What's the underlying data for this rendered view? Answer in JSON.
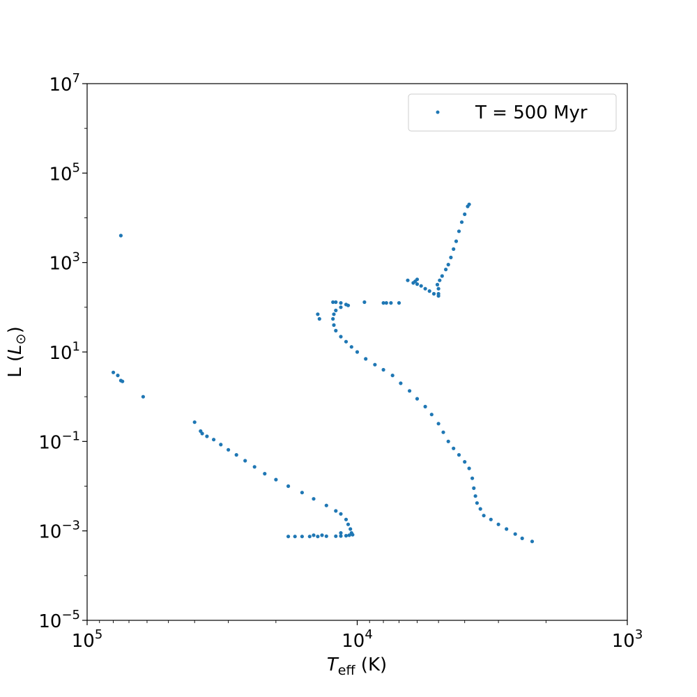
{
  "chart_data": {
    "type": "scatter",
    "title": "",
    "xlabel_main": "T",
    "xlabel_sub": "eff",
    "xlabel_unit": " (K)",
    "ylabel_main": "L (",
    "ylabel_sym": "L",
    "ylabel_sub": "⊙",
    "ylabel_end": ")",
    "x_scale": "log",
    "y_scale": "log",
    "x_inverted": true,
    "xlim": [
      100000,
      1000
    ],
    "ylim": [
      1e-05,
      10000000
    ],
    "grid": false,
    "legend_position": "top-right",
    "x_ticks": [
      {
        "value": 100000,
        "base": "10",
        "exp": "5"
      },
      {
        "value": 10000,
        "base": "10",
        "exp": "4"
      },
      {
        "value": 1000,
        "base": "10",
        "exp": "3"
      }
    ],
    "y_ticks": [
      {
        "value": 1e-05,
        "base": "10",
        "exp": "−5"
      },
      {
        "value": 0.001,
        "base": "10",
        "exp": "−3"
      },
      {
        "value": 0.1,
        "base": "10",
        "exp": "−1"
      },
      {
        "value": 10,
        "base": "10",
        "exp": "1"
      },
      {
        "value": 1000,
        "base": "10",
        "exp": "3"
      },
      {
        "value": 100000,
        "base": "10",
        "exp": "5"
      },
      {
        "value": 10000000,
        "base": "10",
        "exp": "7"
      }
    ],
    "series": [
      {
        "name": "T = 500 Myr",
        "color": "#1f77b4",
        "points": [
          [
            75000,
            4000
          ],
          [
            80000,
            3.5
          ],
          [
            77000,
            3.0
          ],
          [
            75000,
            2.3
          ],
          [
            74000,
            2.2
          ],
          [
            62000,
            1.0
          ],
          [
            40000,
            0.27
          ],
          [
            38000,
            0.17
          ],
          [
            37500,
            0.15
          ],
          [
            36000,
            0.13
          ],
          [
            34000,
            0.11
          ],
          [
            32000,
            0.085
          ],
          [
            30000,
            0.065
          ],
          [
            28000,
            0.05
          ],
          [
            26000,
            0.037
          ],
          [
            24000,
            0.027
          ],
          [
            22000,
            0.019
          ],
          [
            20000,
            0.014
          ],
          [
            18000,
            0.01
          ],
          [
            16000,
            0.0072
          ],
          [
            14500,
            0.0052
          ],
          [
            13000,
            0.0037
          ],
          [
            12000,
            0.0028
          ],
          [
            11500,
            0.0024
          ],
          [
            11000,
            0.0018
          ],
          [
            10800,
            0.0014
          ],
          [
            10600,
            0.0011
          ],
          [
            10500,
            0.0009
          ],
          [
            10400,
            0.00082
          ],
          [
            18000,
            0.00075
          ],
          [
            17000,
            0.00075
          ],
          [
            16000,
            0.00075
          ],
          [
            15000,
            0.00075
          ],
          [
            14000,
            0.00075
          ],
          [
            13000,
            0.00076
          ],
          [
            12000,
            0.00076
          ],
          [
            11500,
            0.00077
          ],
          [
            11000,
            0.00078
          ],
          [
            10700,
            0.0008
          ],
          [
            14500,
            0.0008
          ],
          [
            13500,
            0.0008
          ],
          [
            11500,
            0.0009
          ],
          [
            14000,
            70
          ],
          [
            13800,
            55
          ],
          [
            12300,
            130
          ],
          [
            12000,
            130
          ],
          [
            11500,
            125
          ],
          [
            11000,
            115
          ],
          [
            10800,
            110
          ],
          [
            11500,
            100
          ],
          [
            12000,
            85
          ],
          [
            12200,
            70
          ],
          [
            12300,
            55
          ],
          [
            12200,
            40
          ],
          [
            12000,
            30
          ],
          [
            11500,
            22
          ],
          [
            11000,
            17
          ],
          [
            10500,
            13
          ],
          [
            10000,
            10
          ],
          [
            9300,
            7
          ],
          [
            8600,
            5.2
          ],
          [
            8000,
            4.0
          ],
          [
            7400,
            3.0
          ],
          [
            6900,
            2.0
          ],
          [
            6400,
            1.35
          ],
          [
            6000,
            0.9
          ],
          [
            5600,
            0.6
          ],
          [
            5300,
            0.4
          ],
          [
            5000,
            0.25
          ],
          [
            4800,
            0.16
          ],
          [
            4600,
            0.1
          ],
          [
            4400,
            0.07
          ],
          [
            4200,
            0.05
          ],
          [
            4000,
            0.035
          ],
          [
            3850,
            0.025
          ],
          [
            3750,
            0.015
          ],
          [
            3700,
            0.009
          ],
          [
            3650,
            0.006
          ],
          [
            3600,
            0.0042
          ],
          [
            3500,
            0.0031
          ],
          [
            3400,
            0.0022
          ],
          [
            3200,
            0.0018
          ],
          [
            3000,
            0.0014
          ],
          [
            2800,
            0.0011
          ],
          [
            2600,
            0.00085
          ],
          [
            2450,
            0.00068
          ],
          [
            2250,
            0.00058
          ],
          [
            9400,
            130
          ],
          [
            8000,
            125
          ],
          [
            7800,
            125
          ],
          [
            7500,
            125
          ],
          [
            7000,
            125
          ],
          [
            6500,
            400
          ],
          [
            6200,
            350
          ],
          [
            6000,
            330
          ],
          [
            5800,
            300
          ],
          [
            5600,
            260
          ],
          [
            5400,
            230
          ],
          [
            5200,
            200
          ],
          [
            5000,
            180
          ],
          [
            6000,
            420
          ],
          [
            6100,
            380
          ],
          [
            5000,
            200
          ],
          [
            5000,
            260
          ],
          [
            5050,
            320
          ],
          [
            4950,
            400
          ],
          [
            4850,
            500
          ],
          [
            4700,
            700
          ],
          [
            4600,
            900
          ],
          [
            4500,
            1300
          ],
          [
            4400,
            2000
          ],
          [
            4300,
            3000
          ],
          [
            4200,
            5000
          ],
          [
            4100,
            8000
          ],
          [
            4000,
            12000
          ],
          [
            3900,
            18000
          ],
          [
            3850,
            20000
          ]
        ]
      }
    ]
  }
}
